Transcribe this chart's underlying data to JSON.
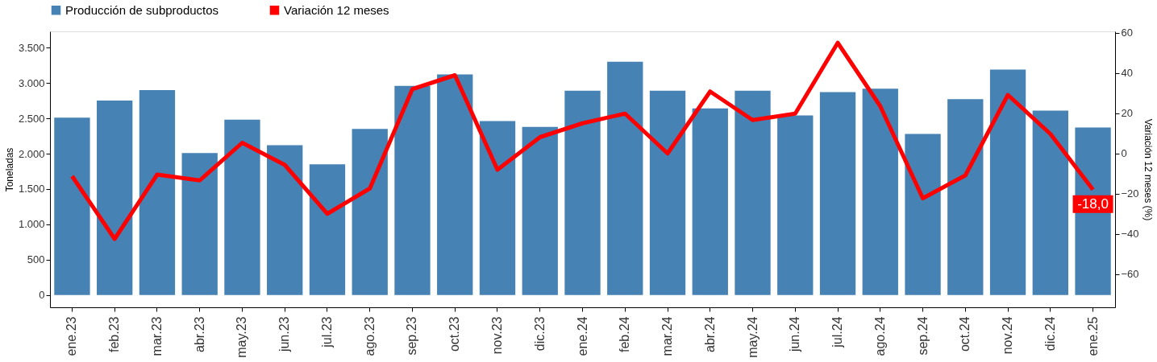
{
  "chart_data": {
    "type": "bar",
    "categories": [
      "ene.23",
      "feb.23",
      "mar.23",
      "abr.23",
      "may.23",
      "jun.23",
      "jul.23",
      "ago.23",
      "sep.23",
      "oct.23",
      "nov.23",
      "dic.23",
      "ene.24",
      "feb.24",
      "mar.24",
      "abr.24",
      "may.24",
      "jun.24",
      "jul.24",
      "ago.24",
      "sep.24",
      "oct.24",
      "nov.24",
      "dic.24",
      "ene.25"
    ],
    "series": [
      {
        "name": "Producción de subproductos",
        "color": "#4682b4",
        "values": [
          2510,
          2750,
          2900,
          2010,
          2480,
          2120,
          1850,
          2350,
          2960,
          3120,
          2460,
          2380,
          2890,
          3300,
          2890,
          2640,
          2890,
          2540,
          2870,
          2920,
          2280,
          2770,
          3190,
          2610,
          2370
        ]
      },
      {
        "name": "Variación 12 meses",
        "color": "#ff0000",
        "type": "line",
        "axis": "y2",
        "line_style": "solid",
        "values": [
          -11.3,
          -42.5,
          -10.5,
          -13.4,
          5.3,
          -5.7,
          -30,
          -17.4,
          32,
          38.9,
          -8.1,
          8.1,
          15,
          19.8,
          0,
          30.8,
          16.6,
          19.8,
          55,
          23.5,
          -22.3,
          -10.9,
          29.1,
          9.7,
          -18
        ]
      }
    ],
    "ylabel": "Toneladas",
    "y2label": "Variación 12 meses (%)",
    "ylim": [
      -173,
      3730
    ],
    "yticks": [
      0,
      500,
      {
        "value": 1000,
        "label": "1.000"
      },
      {
        "value": 1500,
        "label": "1.500"
      },
      {
        "value": 2000,
        "label": "2.000"
      },
      {
        "value": 2500,
        "label": "2.500"
      },
      {
        "value": 3000,
        "label": "3.000"
      },
      {
        "value": 3500,
        "label": "3.500"
      }
    ],
    "y2lim": [
      -76.5,
      60.7
    ],
    "y2ticks": [
      -60,
      -40,
      -20,
      0,
      20,
      40,
      60
    ],
    "annotations": [
      "-18,0"
    ],
    "legend": "top",
    "grid": false
  }
}
